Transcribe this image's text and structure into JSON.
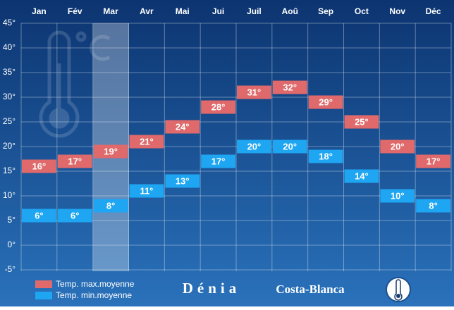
{
  "chart_data": {
    "type": "range-box",
    "categories": [
      "Jan",
      "Fév",
      "Mar",
      "Avr",
      "Mai",
      "Jui",
      "Juil",
      "Aoû",
      "Sep",
      "Oct",
      "Nov",
      "Déc"
    ],
    "series": [
      {
        "name": "Temp. max.moyenne",
        "color": "#e06a6b",
        "values": [
          16,
          17,
          19,
          21,
          24,
          28,
          31,
          32,
          29,
          25,
          20,
          17
        ],
        "value_labels": [
          "16°",
          "17°",
          "19°",
          "21°",
          "24°",
          "28°",
          "31°",
          "32°",
          "29°",
          "25°",
          "20°",
          "17°"
        ]
      },
      {
        "name": "Temp. min.moyenne",
        "color": "#1ea6f2",
        "values": [
          6,
          6,
          8,
          11,
          13,
          17,
          20,
          20,
          18,
          14,
          10,
          8
        ],
        "value_labels": [
          "6°",
          "6°",
          "8°",
          "11°",
          "13°",
          "17°",
          "20°",
          "20°",
          "18°",
          "14°",
          "10°",
          "8°"
        ]
      }
    ],
    "ylim": [
      -5,
      45
    ],
    "yticks": [
      {
        "value": -5,
        "label": "-5°"
      },
      {
        "value": 0,
        "label": "0°"
      },
      {
        "value": 5,
        "label": "5°"
      },
      {
        "value": 10,
        "label": "10°"
      },
      {
        "value": 15,
        "label": "15°"
      },
      {
        "value": 20,
        "label": "20°"
      },
      {
        "value": 25,
        "label": "25°"
      },
      {
        "value": 30,
        "label": "30°"
      },
      {
        "value": 35,
        "label": "35°"
      },
      {
        "value": 40,
        "label": "40°"
      },
      {
        "value": 45,
        "label": "45°"
      }
    ],
    "grid": true,
    "place": "Dénia",
    "region": "Costa-Blanca"
  }
}
